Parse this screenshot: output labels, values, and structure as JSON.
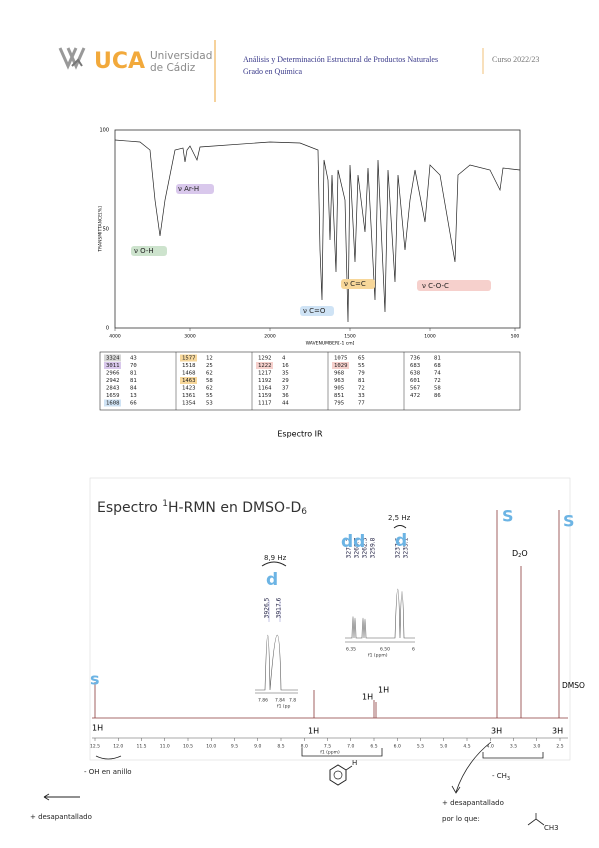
{
  "header": {
    "logo": "UCA",
    "university": [
      "Universidad",
      "de Cádiz"
    ],
    "course": [
      "Análisis y Determinación Estructural de Productos Naturales",
      "Grado en Química"
    ],
    "year": "Curso 2022/23"
  },
  "ir": {
    "yticks": [
      "100",
      "50",
      "0"
    ],
    "ylabel": "TRANSMITTANCE[%]",
    "xticks": [
      "4000",
      "3000",
      "2000",
      "1500",
      "1000",
      "500"
    ],
    "xlabel": "WAVENUMBER[-1 cm]",
    "annotations": [
      "ν O-H",
      "ν Ar-H",
      "ν C=O",
      "ν C=C",
      "ν C-O-C"
    ],
    "table": [
      [
        [
          "3324",
          "43"
        ],
        [
          "3011",
          "70"
        ],
        [
          "2966",
          "81"
        ],
        [
          "2942",
          "81"
        ],
        [
          "2843",
          "84"
        ],
        [
          "1659",
          "13"
        ],
        [
          "1608",
          "66"
        ]
      ],
      [
        [
          "1577",
          "12"
        ],
        [
          "1518",
          "25"
        ],
        [
          "1468",
          "62"
        ],
        [
          "1463",
          "58"
        ],
        [
          "1423",
          "62"
        ],
        [
          "1361",
          "55"
        ],
        [
          "1354",
          "53"
        ]
      ],
      [
        [
          "1292",
          "4"
        ],
        [
          "1222",
          "16"
        ],
        [
          "1217",
          "35"
        ],
        [
          "1192",
          "29"
        ],
        [
          "1164",
          "37"
        ],
        [
          "1159",
          "36"
        ],
        [
          "1117",
          "44"
        ]
      ],
      [
        [
          "1075",
          "65"
        ],
        [
          "1029",
          "55"
        ],
        [
          "968",
          "79"
        ],
        [
          "963",
          "81"
        ],
        [
          "905",
          "72"
        ],
        [
          "851",
          "33"
        ],
        [
          "795",
          "77"
        ]
      ],
      [
        [
          "736",
          "81"
        ],
        [
          "683",
          "68"
        ],
        [
          "638",
          "74"
        ],
        [
          "601",
          "72"
        ],
        [
          "567",
          "58"
        ],
        [
          "472",
          "86"
        ]
      ]
    ],
    "caption": "Espectro IR"
  },
  "nmr": {
    "title": [
      "Espectro ",
      "1",
      "H-RMN en DMSO-D",
      "6"
    ],
    "xticks": [
      "12.5",
      "12.0",
      "11.5",
      "11.0",
      "10.5",
      "10.0",
      "9.5",
      "9.0",
      "8.5",
      "8.0",
      "7.5",
      "7.0",
      "6.5",
      "6.0",
      "5.5",
      "5.0",
      "4.5",
      "4.0",
      "3.5",
      "3.0",
      "2.5"
    ],
    "xlabel": "f1 (ppm)",
    "integrations": [
      "1H",
      "1H",
      "1H",
      "1H",
      "3H",
      "3H"
    ],
    "d2o": [
      "D",
      "2",
      "O"
    ],
    "dmso": "DMSO",
    "inset1": {
      "peaks": [
        "3926.5",
        "3917.6"
      ],
      "ticks": [
        "7.86",
        "7.84",
        "7.8"
      ],
      "xlabel": "f1 (pp"
    },
    "inset2": {
      "peaks": [
        "3271.2",
        "3268.7",
        "3262.3",
        "3259.8",
        "3237.6",
        "3235.1"
      ],
      "ticks": [
        "6.35",
        "6.50",
        "6"
      ],
      "xlabel": "f1 (ppm)"
    }
  },
  "notes": {
    "multiplicity": [
      "s",
      "S",
      "S",
      "d",
      "dd",
      "d"
    ],
    "coupling": [
      "8,9 Hz",
      "2,5 Hz"
    ],
    "oh": "- OH en anillo",
    "h": "H",
    "ch3": [
      "- CH",
      "3"
    ],
    "deshielded": [
      "+ desapantallado",
      "por lo que:",
      "+ desapantallado"
    ],
    "methyl": "CH3"
  }
}
